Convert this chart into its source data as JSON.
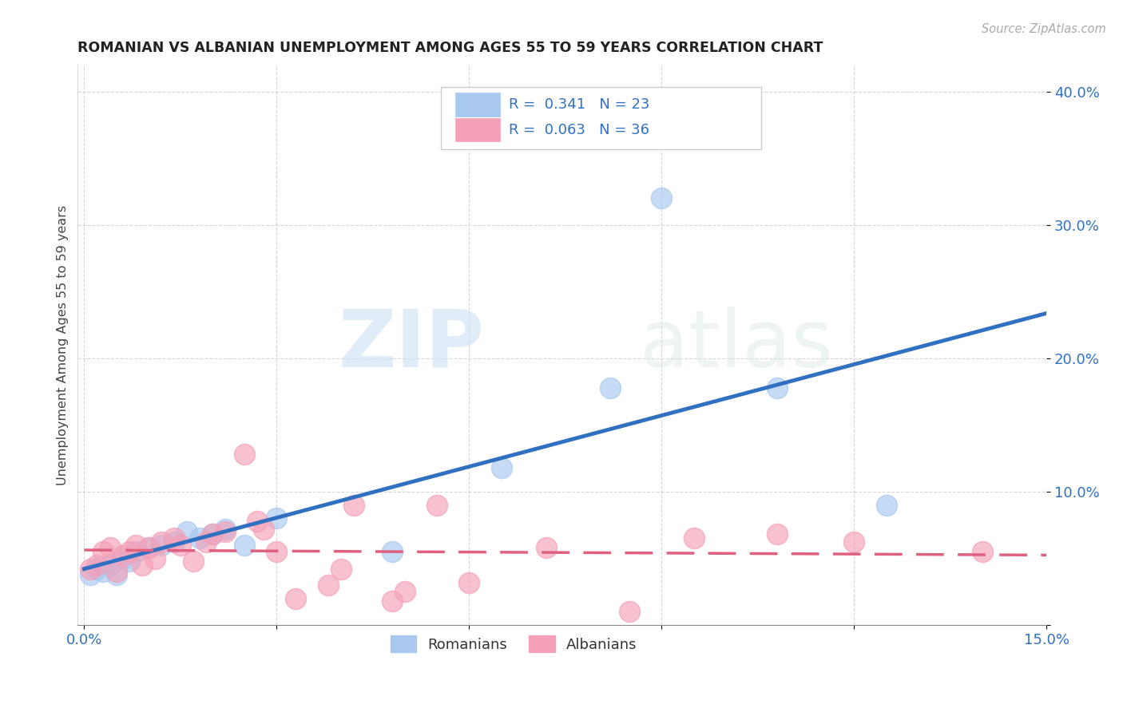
{
  "title": "ROMANIAN VS ALBANIAN UNEMPLOYMENT AMONG AGES 55 TO 59 YEARS CORRELATION CHART",
  "source": "Source: ZipAtlas.com",
  "ylabel": "Unemployment Among Ages 55 to 59 years",
  "xlim": [
    0.0,
    0.15
  ],
  "ylim": [
    0.0,
    0.42
  ],
  "xticks": [
    0.0,
    0.03,
    0.06,
    0.09,
    0.12,
    0.15
  ],
  "xtick_labels": [
    "0.0%",
    "",
    "",
    "",
    "",
    "15.0%"
  ],
  "yticks": [
    0.0,
    0.1,
    0.2,
    0.3,
    0.4
  ],
  "ytick_labels": [
    "",
    "10.0%",
    "20.0%",
    "30.0%",
    "40.0%"
  ],
  "romanian_color": "#a8c8f0",
  "albanian_color": "#f4a0b8",
  "romanian_line_color": "#3070c0",
  "albanian_line_color": "#e06080",
  "romanian_R": 0.341,
  "romanian_N": 23,
  "albanian_R": 0.063,
  "albanian_N": 36,
  "watermark_zip": "ZIP",
  "watermark_atlas": "atlas",
  "legend_items": [
    "Romanians",
    "Albanians"
  ],
  "romanian_x": [
    0.001,
    0.002,
    0.003,
    0.004,
    0.005,
    0.006,
    0.007,
    0.008,
    0.01,
    0.012,
    0.014,
    0.016,
    0.018,
    0.02,
    0.022,
    0.025,
    0.03,
    0.048,
    0.065,
    0.082,
    0.09,
    0.108,
    0.125
  ],
  "romanian_y": [
    0.038,
    0.042,
    0.04,
    0.045,
    0.038,
    0.05,
    0.048,
    0.055,
    0.058,
    0.06,
    0.062,
    0.07,
    0.065,
    0.068,
    0.072,
    0.06,
    0.08,
    0.055,
    0.118,
    0.178,
    0.32,
    0.178,
    0.09
  ],
  "albanian_x": [
    0.001,
    0.002,
    0.003,
    0.004,
    0.005,
    0.006,
    0.007,
    0.008,
    0.009,
    0.01,
    0.011,
    0.012,
    0.014,
    0.015,
    0.017,
    0.019,
    0.02,
    0.022,
    0.025,
    0.027,
    0.028,
    0.03,
    0.033,
    0.038,
    0.04,
    0.042,
    0.048,
    0.05,
    0.055,
    0.06,
    0.072,
    0.085,
    0.095,
    0.108,
    0.12,
    0.14
  ],
  "albanian_y": [
    0.042,
    0.045,
    0.055,
    0.058,
    0.04,
    0.052,
    0.055,
    0.06,
    0.045,
    0.058,
    0.05,
    0.062,
    0.065,
    0.06,
    0.048,
    0.062,
    0.068,
    0.07,
    0.128,
    0.078,
    0.072,
    0.055,
    0.02,
    0.03,
    0.042,
    0.09,
    0.018,
    0.025,
    0.09,
    0.032,
    0.058,
    0.01,
    0.065,
    0.068,
    0.062,
    0.055
  ]
}
